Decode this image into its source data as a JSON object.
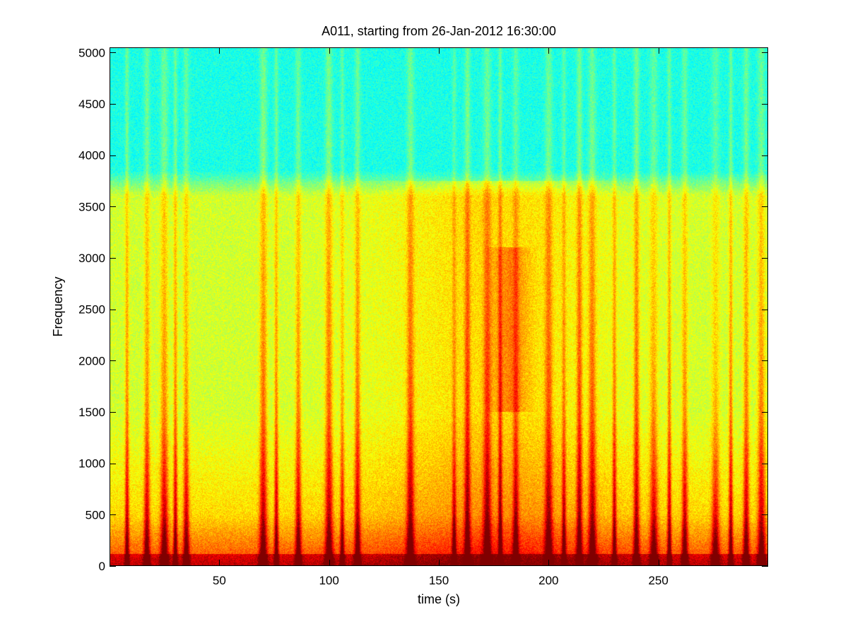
{
  "chart_data": {
    "type": "heatmap",
    "title": "A011, starting from 26-Jan-2012 16:30:00",
    "xlabel": "time (s)",
    "ylabel": "Frequency",
    "xlim": [
      0,
      300
    ],
    "ylim": [
      0,
      5050
    ],
    "x_ticks": [
      50,
      100,
      150,
      200,
      250
    ],
    "x_tick_labels": [
      "50",
      "100",
      "150",
      "200",
      "250"
    ],
    "y_ticks": [
      0,
      500,
      1000,
      1500,
      2000,
      2500,
      3000,
      3500,
      4000,
      4500,
      5000
    ],
    "y_tick_labels": [
      "0",
      "500",
      "1000",
      "1500",
      "2000",
      "2500",
      "3000",
      "3500",
      "4000",
      "4500",
      "5000"
    ],
    "colormap": "jet",
    "grid": false,
    "description_values": {
      "noise_floor_band_top_hz": 3750,
      "broadband_event_times_s": [
        8,
        17,
        25,
        30,
        35,
        70,
        76,
        86,
        100,
        106,
        113,
        137,
        157,
        163,
        172,
        178,
        185,
        200,
        207,
        214,
        220,
        230,
        240,
        248,
        255,
        262,
        276,
        283,
        290,
        297
      ],
      "energy_hotspot": {
        "time_s": [
          170,
          195
        ],
        "freq_hz": [
          1500,
          3100
        ]
      }
    }
  }
}
